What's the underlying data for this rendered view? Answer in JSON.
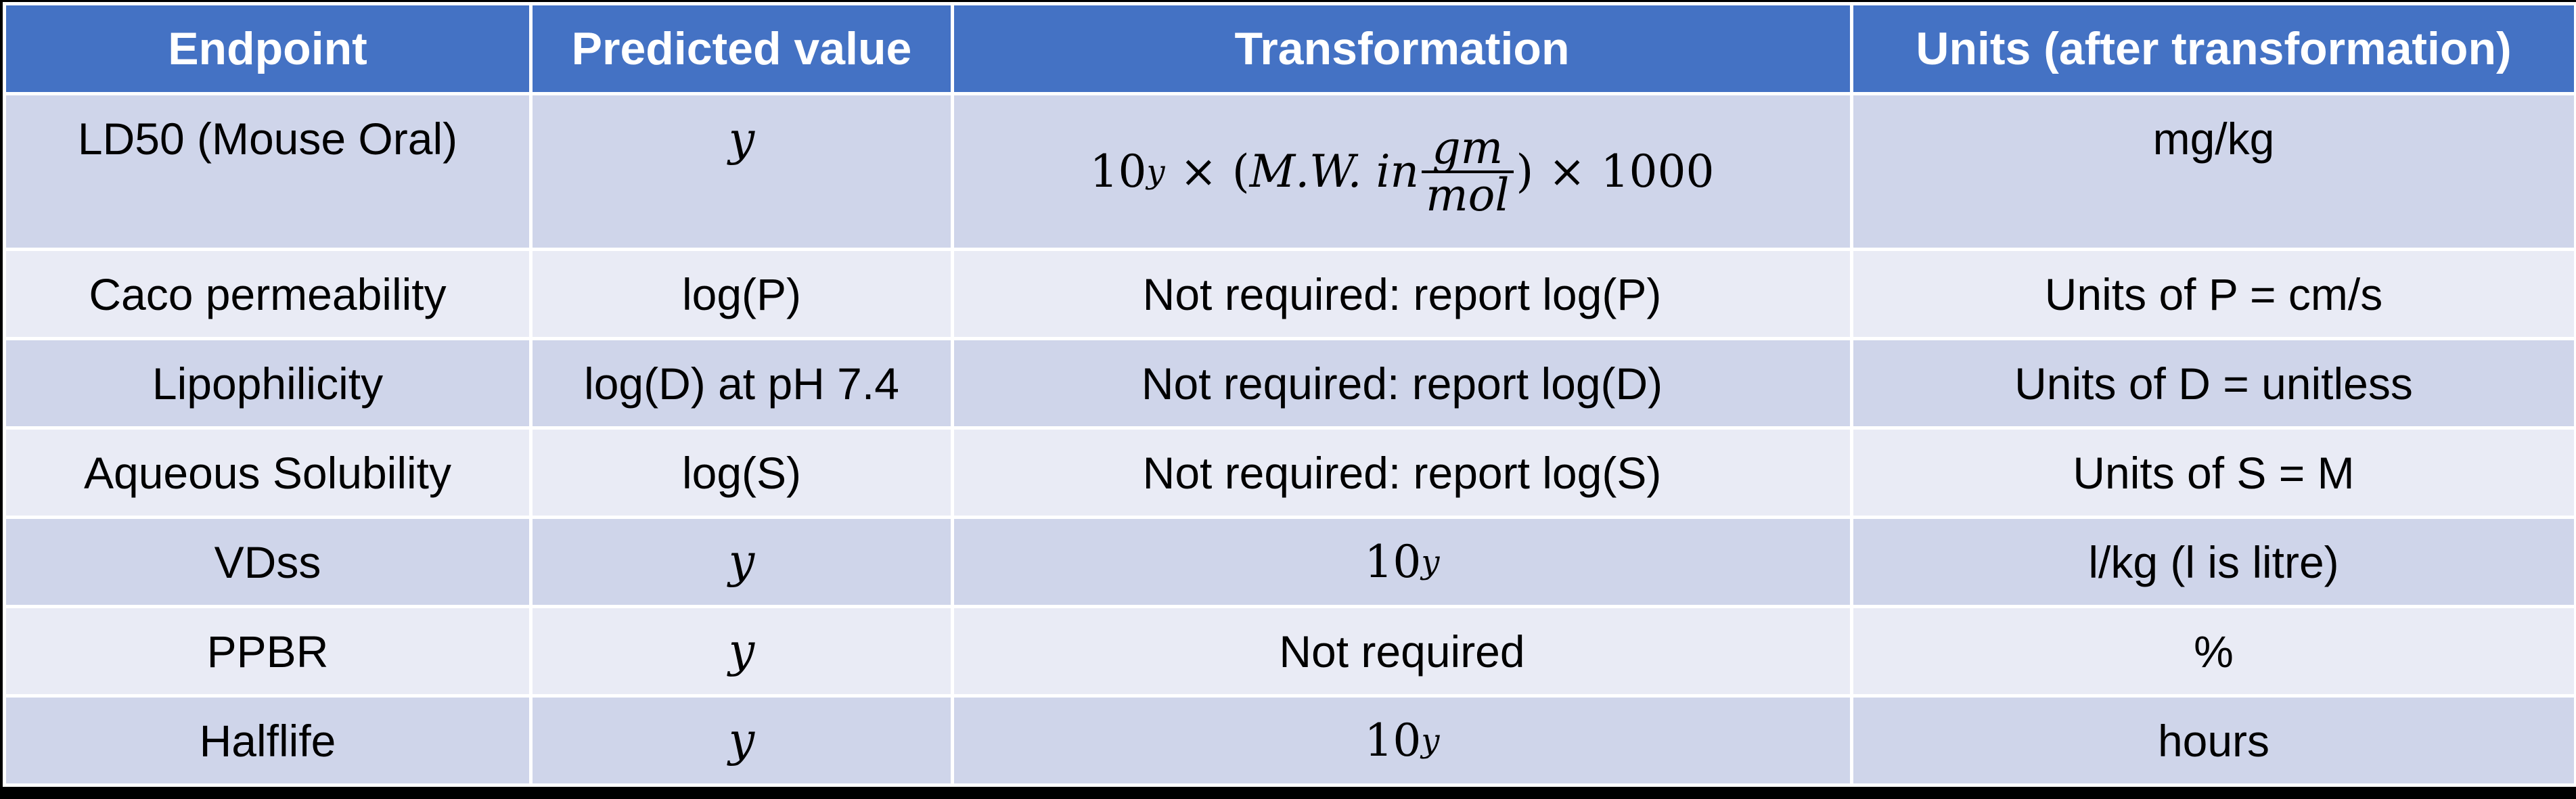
{
  "table": {
    "headers": [
      "Endpoint",
      "Predicted value",
      "Transformation",
      "Units (after transformation)"
    ],
    "rows": [
      {
        "endpoint": "LD50 (Mouse Oral)",
        "predicted": "y",
        "transformation": {
          "base": "10",
          "exponent": "y",
          "times1": "×",
          "open": "(",
          "mw": "M.W. in",
          "frac_num": "gm",
          "frac_den": "mol",
          "close": ")",
          "times2": "×",
          "factor": "1000"
        },
        "units": "mg/kg"
      },
      {
        "endpoint": "Caco permeability",
        "predicted": "log(P)",
        "transformation": "Not required: report log(P)",
        "units": "Units of P = cm/s"
      },
      {
        "endpoint": "Lipophilicity",
        "predicted": "log(D) at pH 7.4",
        "transformation": "Not required: report log(D)",
        "units": "Units of D = unitless"
      },
      {
        "endpoint": "Aqueous Solubility",
        "predicted": "log(S)",
        "transformation": "Not required: report log(S)",
        "units": "Units of S = M"
      },
      {
        "endpoint": "VDss",
        "predicted": "y",
        "transformation": {
          "base": "10",
          "exponent": "y"
        },
        "units": "l/kg (l is litre)"
      },
      {
        "endpoint": "PPBR",
        "predicted": "y",
        "transformation": "Not required",
        "units": "%"
      },
      {
        "endpoint": "Halflife",
        "predicted": "y",
        "transformation": {
          "base": "10",
          "exponent": "y"
        },
        "units": "hours"
      }
    ]
  },
  "colors": {
    "header_bg": "#4472c4",
    "header_text": "#ffffff",
    "row_dark": "#cfd5ea",
    "row_light": "#e9ebf5",
    "border": "#ffffff",
    "page_bg": "#000000"
  }
}
